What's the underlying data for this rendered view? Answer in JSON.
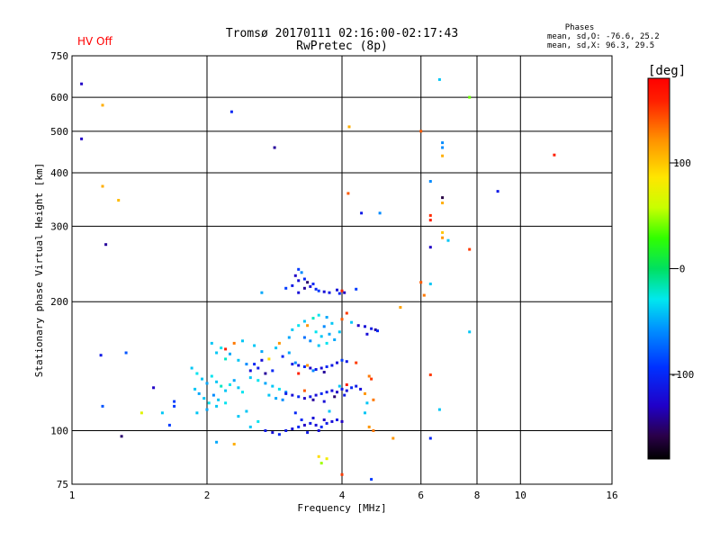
{
  "title_line1": "Tromsø 20170111 02:16:00-02:17:43",
  "title_line2": "RwPretec (8p)",
  "status_label": "HV Off",
  "status_color": "#ff0000",
  "phases": {
    "header": "Phases",
    "line_o": "mean, sd,O: -76.6, 25.2",
    "line_x": "mean, sd,X:  96.3, 29.5"
  },
  "colorbar": {
    "unit_label": "[deg]",
    "min": -180,
    "max": 180,
    "tick_values": [
      100,
      0,
      -100
    ],
    "tick_labels": [
      "100",
      "0",
      "-100"
    ]
  },
  "chart_data": {
    "type": "scatter",
    "xlabel": "Frequency [MHz]",
    "ylabel": "Stationary phase Virtual Height [km]",
    "xscale": "log2",
    "yscale": "log",
    "xlim": [
      1,
      16
    ],
    "ylim": [
      75,
      750
    ],
    "xticks": [
      1,
      2,
      4,
      6,
      8,
      10,
      16
    ],
    "xtick_labels": [
      "1",
      "2",
      "4",
      "6",
      "8",
      "10",
      "16"
    ],
    "yticks": [
      75,
      100,
      200,
      300,
      400,
      500,
      600,
      750
    ],
    "ytick_labels": [
      "75",
      "100",
      "200",
      "300",
      "400",
      "500",
      "600",
      "750"
    ],
    "grid": true,
    "points": [
      [
        1.05,
        645,
        -130
      ],
      [
        1.05,
        480,
        -130
      ],
      [
        1.17,
        575,
        110
      ],
      [
        1.17,
        372,
        110
      ],
      [
        1.27,
        345,
        105
      ],
      [
        1.19,
        272,
        -140
      ],
      [
        1.16,
        150,
        -110
      ],
      [
        1.32,
        152,
        -80
      ],
      [
        1.17,
        114,
        -80
      ],
      [
        1.43,
        110,
        70
      ],
      [
        1.29,
        97,
        -150
      ],
      [
        1.52,
        126,
        -130
      ],
      [
        1.69,
        114,
        -90
      ],
      [
        1.69,
        117,
        -90
      ],
      [
        1.59,
        110,
        -40
      ],
      [
        1.65,
        103,
        -90
      ],
      [
        2.27,
        555,
        -100
      ],
      [
        2.83,
        458,
        -140
      ],
      [
        4.15,
        512,
        110
      ],
      [
        4.13,
        358,
        140
      ],
      [
        4.42,
        322,
        -110
      ],
      [
        4.86,
        322,
        -60
      ],
      [
        6.6,
        660,
        -40
      ],
      [
        7.7,
        600,
        40
      ],
      [
        6.0,
        500,
        140
      ],
      [
        6.7,
        470,
        -60
      ],
      [
        6.7,
        458,
        -60
      ],
      [
        6.7,
        438,
        110
      ],
      [
        6.3,
        382,
        -60
      ],
      [
        6.7,
        350,
        -160
      ],
      [
        6.7,
        340,
        110
      ],
      [
        6.3,
        318,
        155
      ],
      [
        6.3,
        310,
        160
      ],
      [
        6.7,
        290,
        100
      ],
      [
        6.7,
        282,
        120
      ],
      [
        6.9,
        278,
        -40
      ],
      [
        6.3,
        268,
        -130
      ],
      [
        7.7,
        265,
        150
      ],
      [
        8.9,
        362,
        -110
      ],
      [
        11.9,
        440,
        160
      ],
      [
        6.0,
        222,
        140
      ],
      [
        6.3,
        220,
        -40
      ],
      [
        6.1,
        207,
        130
      ],
      [
        5.4,
        194,
        115
      ],
      [
        7.7,
        170,
        -40
      ],
      [
        6.3,
        135,
        150
      ],
      [
        6.6,
        112,
        -40
      ],
      [
        6.3,
        96,
        -100
      ],
      [
        5.2,
        96,
        120
      ],
      [
        4.65,
        77,
        -90
      ],
      [
        4.0,
        79,
        150
      ],
      [
        3.6,
        84,
        50
      ],
      [
        3.7,
        86,
        80
      ],
      [
        3.55,
        87,
        90
      ],
      [
        2.3,
        93,
        110
      ],
      [
        2.1,
        94,
        -50
      ],
      [
        3.2,
        238,
        -90
      ],
      [
        3.25,
        234,
        -60
      ],
      [
        3.15,
        230,
        -130
      ],
      [
        3.3,
        226,
        -100
      ],
      [
        3.2,
        224,
        -120
      ],
      [
        3.35,
        222,
        -150
      ],
      [
        3.1,
        218,
        -110
      ],
      [
        3.4,
        217,
        -120
      ],
      [
        3.3,
        215,
        -140
      ],
      [
        3.5,
        214,
        -100
      ],
      [
        3.55,
        212,
        -90
      ],
      [
        3.65,
        211,
        -120
      ],
      [
        3.75,
        210,
        -110
      ],
      [
        3.9,
        213,
        -120
      ],
      [
        4.0,
        212,
        160
      ],
      [
        3.95,
        209,
        -100
      ],
      [
        4.05,
        210,
        -130
      ],
      [
        4.3,
        214,
        -90
      ],
      [
        2.65,
        210,
        -50
      ],
      [
        3.0,
        215,
        -90
      ],
      [
        3.2,
        210,
        -120
      ],
      [
        3.45,
        220,
        -100
      ],
      [
        4.35,
        176,
        -130
      ],
      [
        4.5,
        175,
        -120
      ],
      [
        4.65,
        173,
        -110
      ],
      [
        4.75,
        172,
        -140
      ],
      [
        4.55,
        168,
        -120
      ],
      [
        4.8,
        171,
        -100
      ],
      [
        3.1,
        172,
        -40
      ],
      [
        3.2,
        176,
        -30
      ],
      [
        3.3,
        180,
        -40
      ],
      [
        3.45,
        183,
        -20
      ],
      [
        3.55,
        186,
        -30
      ],
      [
        3.7,
        184,
        -50
      ],
      [
        3.8,
        178,
        -40
      ],
      [
        3.65,
        175,
        -60
      ],
      [
        3.5,
        170,
        -30
      ],
      [
        3.6,
        166,
        -40
      ],
      [
        3.75,
        168,
        -50
      ],
      [
        3.4,
        162,
        -60
      ],
      [
        3.55,
        158,
        -40
      ],
      [
        3.7,
        160,
        -30
      ],
      [
        3.85,
        163,
        -50
      ],
      [
        3.3,
        165,
        -70
      ],
      [
        3.05,
        165,
        -50
      ],
      [
        3.95,
        170,
        -40
      ],
      [
        4.0,
        182,
        140
      ],
      [
        4.1,
        188,
        150
      ],
      [
        4.2,
        179,
        -40
      ],
      [
        3.35,
        176,
        120
      ],
      [
        2.05,
        160,
        -40
      ],
      [
        2.15,
        156,
        -30
      ],
      [
        2.25,
        151,
        -50
      ],
      [
        2.35,
        146,
        -40
      ],
      [
        2.45,
        143,
        -60
      ],
      [
        2.2,
        147,
        -20
      ],
      [
        2.1,
        152,
        -40
      ],
      [
        2.55,
        158,
        -40
      ],
      [
        2.65,
        153,
        -50
      ],
      [
        2.75,
        147,
        90
      ],
      [
        2.85,
        156,
        -40
      ],
      [
        2.95,
        149,
        -100
      ],
      [
        3.05,
        152,
        -50
      ],
      [
        3.15,
        144,
        -60
      ],
      [
        2.5,
        138,
        -120
      ],
      [
        2.6,
        140,
        -110
      ],
      [
        2.7,
        136,
        -140
      ],
      [
        2.8,
        138,
        -100
      ],
      [
        2.3,
        160,
        130
      ],
      [
        2.2,
        155,
        160
      ],
      [
        2.4,
        162,
        -40
      ],
      [
        2.9,
        160,
        120
      ],
      [
        1.85,
        140,
        -40
      ],
      [
        1.9,
        136,
        -30
      ],
      [
        1.95,
        132,
        -40
      ],
      [
        2.0,
        129,
        -50
      ],
      [
        2.05,
        134,
        -30
      ],
      [
        2.1,
        130,
        -40
      ],
      [
        2.15,
        127,
        -20
      ],
      [
        2.2,
        124,
        -40
      ],
      [
        2.25,
        128,
        -30
      ],
      [
        2.3,
        131,
        -50
      ],
      [
        2.35,
        126,
        -40
      ],
      [
        2.4,
        123,
        -30
      ],
      [
        1.88,
        125,
        -40
      ],
      [
        1.92,
        122,
        -50
      ],
      [
        1.97,
        119,
        -40
      ],
      [
        2.02,
        116,
        -30
      ],
      [
        2.07,
        121,
        -60
      ],
      [
        2.12,
        118,
        -40
      ],
      [
        2.0,
        112,
        -50
      ],
      [
        2.1,
        114,
        -40
      ],
      [
        2.2,
        116,
        -30
      ],
      [
        1.9,
        110,
        -40
      ],
      [
        2.5,
        133,
        -40
      ],
      [
        2.6,
        131,
        -30
      ],
      [
        2.7,
        129,
        -50
      ],
      [
        2.8,
        127,
        -40
      ],
      [
        2.9,
        125,
        -30
      ],
      [
        3.0,
        123,
        -60
      ],
      [
        2.75,
        121,
        -40
      ],
      [
        2.85,
        119,
        -50
      ],
      [
        2.95,
        118,
        -60
      ],
      [
        3.1,
        143,
        -110
      ],
      [
        3.2,
        142,
        -120
      ],
      [
        3.3,
        141,
        -100
      ],
      [
        3.4,
        140,
        -130
      ],
      [
        3.5,
        139,
        -110
      ],
      [
        3.6,
        140,
        -120
      ],
      [
        3.7,
        141,
        -100
      ],
      [
        3.8,
        142,
        -110
      ],
      [
        3.9,
        144,
        -120
      ],
      [
        4.0,
        146,
        -90
      ],
      [
        4.1,
        145,
        -110
      ],
      [
        4.3,
        144,
        150
      ],
      [
        3.45,
        138,
        -60
      ],
      [
        3.65,
        137,
        -140
      ],
      [
        3.35,
        142,
        120
      ],
      [
        3.2,
        136,
        160
      ],
      [
        3.0,
        122,
        -110
      ],
      [
        3.1,
        121,
        -120
      ],
      [
        3.2,
        120,
        -100
      ],
      [
        3.3,
        119,
        -130
      ],
      [
        3.4,
        120,
        -110
      ],
      [
        3.5,
        121,
        -120
      ],
      [
        3.6,
        122,
        -100
      ],
      [
        3.7,
        123,
        -110
      ],
      [
        3.8,
        124,
        -120
      ],
      [
        3.9,
        123,
        -130
      ],
      [
        4.0,
        125,
        -110
      ],
      [
        4.1,
        124,
        -120
      ],
      [
        4.2,
        126,
        -100
      ],
      [
        4.3,
        127,
        -110
      ],
      [
        4.4,
        125,
        -120
      ],
      [
        3.45,
        118,
        -140
      ],
      [
        3.65,
        117,
        -120
      ],
      [
        3.85,
        120,
        -150
      ],
      [
        4.05,
        121,
        -110
      ],
      [
        3.95,
        127,
        -40
      ],
      [
        4.1,
        128,
        160
      ],
      [
        3.3,
        124,
        140
      ],
      [
        4.5,
        122,
        120
      ],
      [
        4.7,
        118,
        130
      ],
      [
        2.7,
        100,
        -110
      ],
      [
        2.8,
        99,
        -120
      ],
      [
        2.9,
        98,
        -100
      ],
      [
        3.0,
        100,
        -110
      ],
      [
        3.1,
        101,
        -120
      ],
      [
        3.2,
        102,
        -100
      ],
      [
        3.3,
        103,
        -130
      ],
      [
        3.4,
        104,
        -110
      ],
      [
        3.5,
        103,
        -120
      ],
      [
        3.6,
        102,
        -100
      ],
      [
        3.7,
        104,
        -110
      ],
      [
        3.8,
        105,
        -120
      ],
      [
        3.9,
        106,
        -110
      ],
      [
        4.0,
        105,
        -130
      ],
      [
        3.25,
        106,
        -100
      ],
      [
        3.45,
        107,
        -120
      ],
      [
        3.65,
        106,
        -130
      ],
      [
        3.35,
        99,
        -110
      ],
      [
        3.55,
        100,
        -120
      ],
      [
        2.5,
        102,
        -40
      ],
      [
        2.6,
        105,
        -30
      ],
      [
        2.35,
        108,
        -40
      ],
      [
        2.45,
        111,
        -40
      ],
      [
        3.15,
        110,
        -100
      ],
      [
        3.75,
        111,
        -40
      ],
      [
        4.6,
        102,
        120
      ],
      [
        4.7,
        100,
        130
      ],
      [
        4.5,
        110,
        -40
      ],
      [
        4.55,
        116,
        -40
      ],
      [
        4.65,
        132,
        150
      ],
      [
        4.6,
        134,
        130
      ],
      [
        2.55,
        143,
        -100
      ],
      [
        2.65,
        146,
        -120
      ]
    ]
  }
}
